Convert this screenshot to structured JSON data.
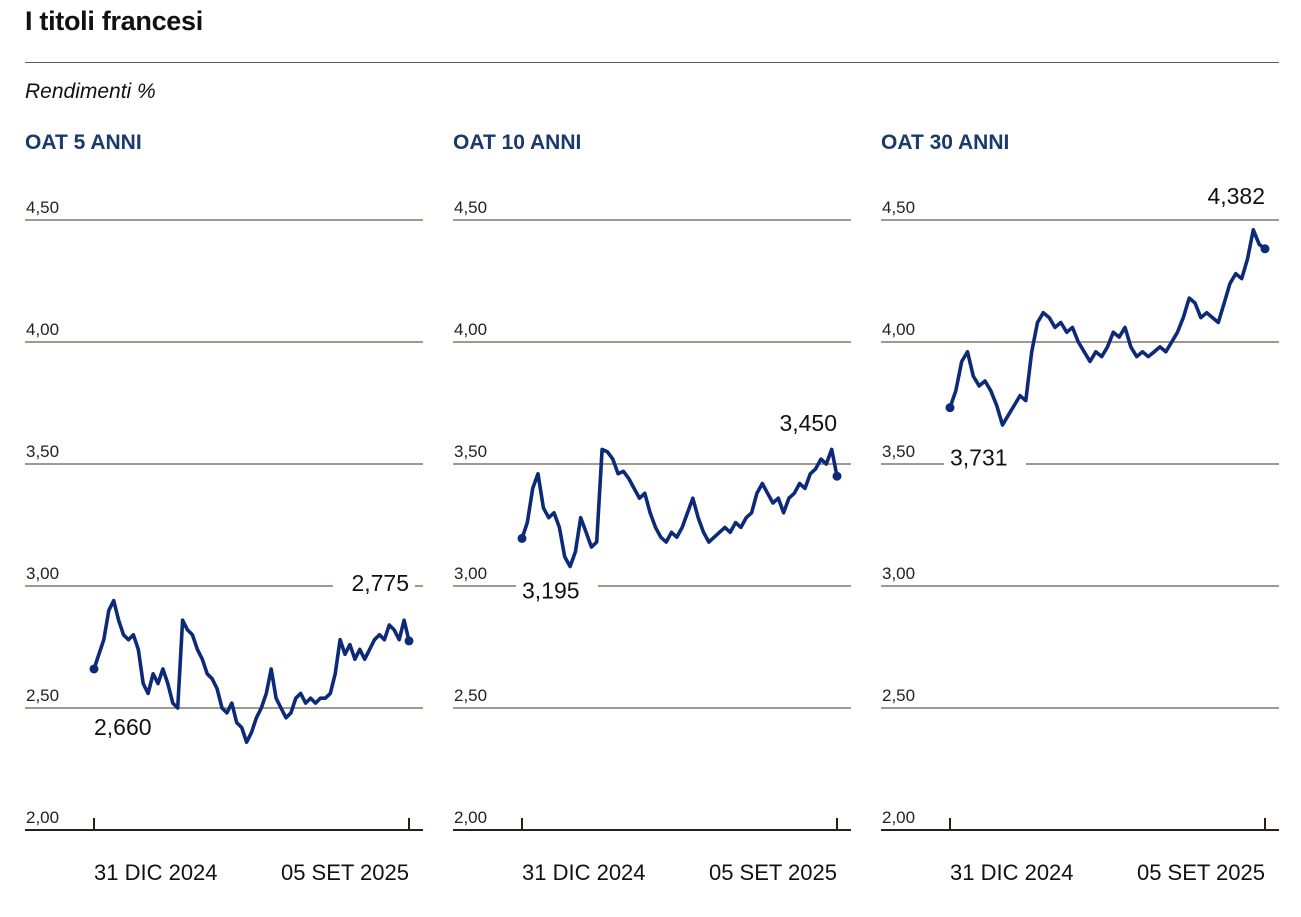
{
  "header": {
    "title": "I titoli francesi",
    "subtitle": "Rendimenti %"
  },
  "chart_data": [
    {
      "type": "line",
      "title": "OAT 5 ANNI",
      "ylim": [
        2.0,
        4.5
      ],
      "yticks": [
        "4,50",
        "4,00",
        "3,50",
        "3,00",
        "2,50",
        "2,00"
      ],
      "xtick_labels": [
        "31 DIC 2024",
        "05 SET 2025"
      ],
      "start_label": "2,660",
      "end_label": "2,775",
      "color": "#0d2a78",
      "series": [
        {
          "values": [
            2.66,
            2.72,
            2.78,
            2.9,
            2.94,
            2.86,
            2.8,
            2.78,
            2.8,
            2.74,
            2.6,
            2.56,
            2.64,
            2.6,
            2.66,
            2.6,
            2.52,
            2.5,
            2.86,
            2.82,
            2.8,
            2.74,
            2.7,
            2.64,
            2.62,
            2.58,
            2.5,
            2.48,
            2.52,
            2.44,
            2.42,
            2.36,
            2.4,
            2.46,
            2.5,
            2.56,
            2.66,
            2.54,
            2.5,
            2.46,
            2.48,
            2.54,
            2.56,
            2.52,
            2.54,
            2.52,
            2.54,
            2.54,
            2.56,
            2.64,
            2.78,
            2.72,
            2.76,
            2.7,
            2.74,
            2.7,
            2.74,
            2.78,
            2.8,
            2.78,
            2.84,
            2.82,
            2.78,
            2.86,
            2.775
          ]
        }
      ]
    },
    {
      "type": "line",
      "title": "OAT 10 ANNI",
      "ylim": [
        2.0,
        4.5
      ],
      "yticks": [
        "4,50",
        "4,00",
        "3,50",
        "3,00",
        "2,50",
        "2,00"
      ],
      "xtick_labels": [
        "31 DIC 2024",
        "05 SET 2025"
      ],
      "start_label": "3,195",
      "end_label": "3,450",
      "color": "#0d2a78",
      "series": [
        {
          "values": [
            3.195,
            3.26,
            3.4,
            3.46,
            3.32,
            3.28,
            3.3,
            3.24,
            3.12,
            3.08,
            3.14,
            3.28,
            3.22,
            3.16,
            3.18,
            3.56,
            3.55,
            3.52,
            3.46,
            3.47,
            3.44,
            3.4,
            3.36,
            3.38,
            3.3,
            3.24,
            3.2,
            3.18,
            3.22,
            3.2,
            3.24,
            3.3,
            3.36,
            3.28,
            3.22,
            3.18,
            3.2,
            3.22,
            3.24,
            3.22,
            3.26,
            3.24,
            3.28,
            3.3,
            3.38,
            3.42,
            3.38,
            3.34,
            3.36,
            3.3,
            3.36,
            3.38,
            3.42,
            3.4,
            3.46,
            3.48,
            3.52,
            3.5,
            3.56,
            3.45
          ]
        }
      ]
    },
    {
      "type": "line",
      "title": "OAT 30 ANNI",
      "ylim": [
        2.0,
        4.5
      ],
      "yticks": [
        "4,50",
        "4,00",
        "3,50",
        "3,00",
        "2,50",
        "2,00"
      ],
      "xtick_labels": [
        "31 DIC 2024",
        "05 SET 2025"
      ],
      "start_label": "3,731",
      "end_label": "4,382",
      "color": "#0d2a78",
      "series": [
        {
          "values": [
            3.731,
            3.8,
            3.92,
            3.96,
            3.86,
            3.82,
            3.84,
            3.8,
            3.74,
            3.66,
            3.7,
            3.74,
            3.78,
            3.76,
            3.96,
            4.08,
            4.12,
            4.1,
            4.06,
            4.08,
            4.04,
            4.06,
            4.0,
            3.96,
            3.92,
            3.96,
            3.94,
            3.98,
            4.04,
            4.02,
            4.06,
            3.98,
            3.94,
            3.96,
            3.94,
            3.96,
            3.98,
            3.96,
            4.0,
            4.04,
            4.1,
            4.18,
            4.16,
            4.1,
            4.12,
            4.1,
            4.08,
            4.16,
            4.24,
            4.28,
            4.26,
            4.34,
            4.46,
            4.4,
            4.382
          ]
        }
      ]
    }
  ]
}
